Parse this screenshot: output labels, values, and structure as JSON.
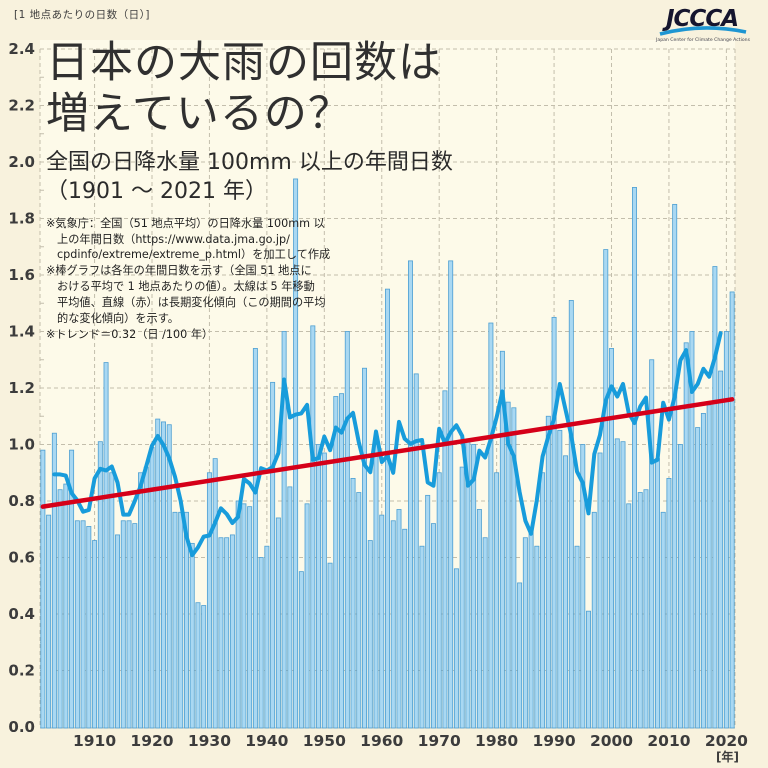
{
  "page": {
    "background": "#F8F2DD",
    "plot_background": "#FDFAE9"
  },
  "header": {
    "logo": {
      "name": "JCCCA",
      "tagline": "Japan Center for Climate Change Actions",
      "text_color": "#15152e",
      "swoosh_color": "#1E96D2"
    }
  },
  "title_block": {
    "title_line1": "日本の大雨の回数は",
    "title_line2": "増えているの？",
    "subtitle_line1": "全国の日降水量 100mm 以上の年間日数",
    "subtitle_line2": "（1901 ～ 2021 年）",
    "notes": [
      [
        "※気象庁：全国（51 地点平均）の日降水量 100mm 以",
        "上の年間日数（https://www.data.jma.go.jp/",
        "cpdinfo/extreme/extreme_p.html）を加工して作成"
      ],
      [
        "※棒グラフは各年の年間日数を示す（全国 51 地点に",
        "おける平均で 1 地点あたりの値）。太線は 5 年移動",
        "平均値、直線（赤）は長期変化傾向（この期間の平均",
        "的な変化傾向）を示す。"
      ],
      [
        "※トレンド＝0.32（日 /100 年）"
      ]
    ]
  },
  "chart_data": {
    "type": "bar",
    "title": "全国の日降水量 100mm 以上の年間日数（1901～2021年）",
    "ylabel": "[1 地点あたりの日数（日）]",
    "x_unit_label": "[年]",
    "x_start_year": 1901,
    "x_end_year": 2021,
    "x_tick_labels": [
      "1910",
      "1920",
      "1930",
      "1940",
      "1950",
      "1960",
      "1970",
      "1980",
      "1990",
      "2000",
      "2010",
      "2020"
    ],
    "ylim": [
      0,
      2.4
    ],
    "y_tick_step": 0.2,
    "grid": true,
    "legend_position": "none",
    "colors": {
      "bar_fill": "#A9D8F2",
      "bar_stroke": "#4D9FD2",
      "moving_average_line": "#189CDB",
      "trend_line": "#D50019",
      "grid_line": "#C3BEAC",
      "axis_text": "#3C3C3C"
    },
    "series": [
      {
        "name": "各年の年間日数（棒グラフ・1地点あたり）",
        "type": "bar",
        "values": [
          0.98,
          0.75,
          1.04,
          0.84,
          0.86,
          0.98,
          0.73,
          0.73,
          0.71,
          0.66,
          1.01,
          1.29,
          0.9,
          0.68,
          0.73,
          0.73,
          0.72,
          0.9,
          0.92,
          0.99,
          1.09,
          1.08,
          1.07,
          0.76,
          0.76,
          0.76,
          0.65,
          0.44,
          0.43,
          0.9,
          0.95,
          0.67,
          0.67,
          0.68,
          0.8,
          0.79,
          0.78,
          1.34,
          0.6,
          0.64,
          1.22,
          0.74,
          1.4,
          0.85,
          1.94,
          0.55,
          0.79,
          1.42,
          1.0,
          0.97,
          0.58,
          1.17,
          1.18,
          1.4,
          0.88,
          0.83,
          1.27,
          0.66,
          1.0,
          0.75,
          1.55,
          0.73,
          0.77,
          0.7,
          1.65,
          1.25,
          0.64,
          0.82,
          0.72,
          0.9,
          1.19,
          1.65,
          0.56,
          0.92,
          1.02,
          1.0,
          0.77,
          0.67,
          1.43,
          0.9,
          1.33,
          1.15,
          1.13,
          0.51,
          0.67,
          0.7,
          0.64,
          0.9,
          1.1,
          1.45,
          1.05,
          0.96,
          1.51,
          0.64,
          1.0,
          0.41,
          0.76,
          0.97,
          1.69,
          1.34,
          1.02,
          1.01,
          0.79,
          1.91,
          0.83,
          0.84,
          1.3,
          0.95,
          0.76,
          0.88,
          1.85,
          1.0,
          1.36,
          1.4,
          1.06,
          1.11,
          1.14,
          1.63,
          1.26,
          1.4,
          1.54
        ]
      },
      {
        "name": "5 年移動平均値（太線）",
        "type": "line",
        "derived": "centered 5-year moving average of bar values"
      },
      {
        "name": "長期変化傾向（直線・赤）",
        "type": "trend",
        "start": {
          "year": 1901,
          "value": 0.78
        },
        "end": {
          "year": 2021,
          "value": 1.16
        },
        "trend_per_100yr": 0.32
      }
    ]
  }
}
